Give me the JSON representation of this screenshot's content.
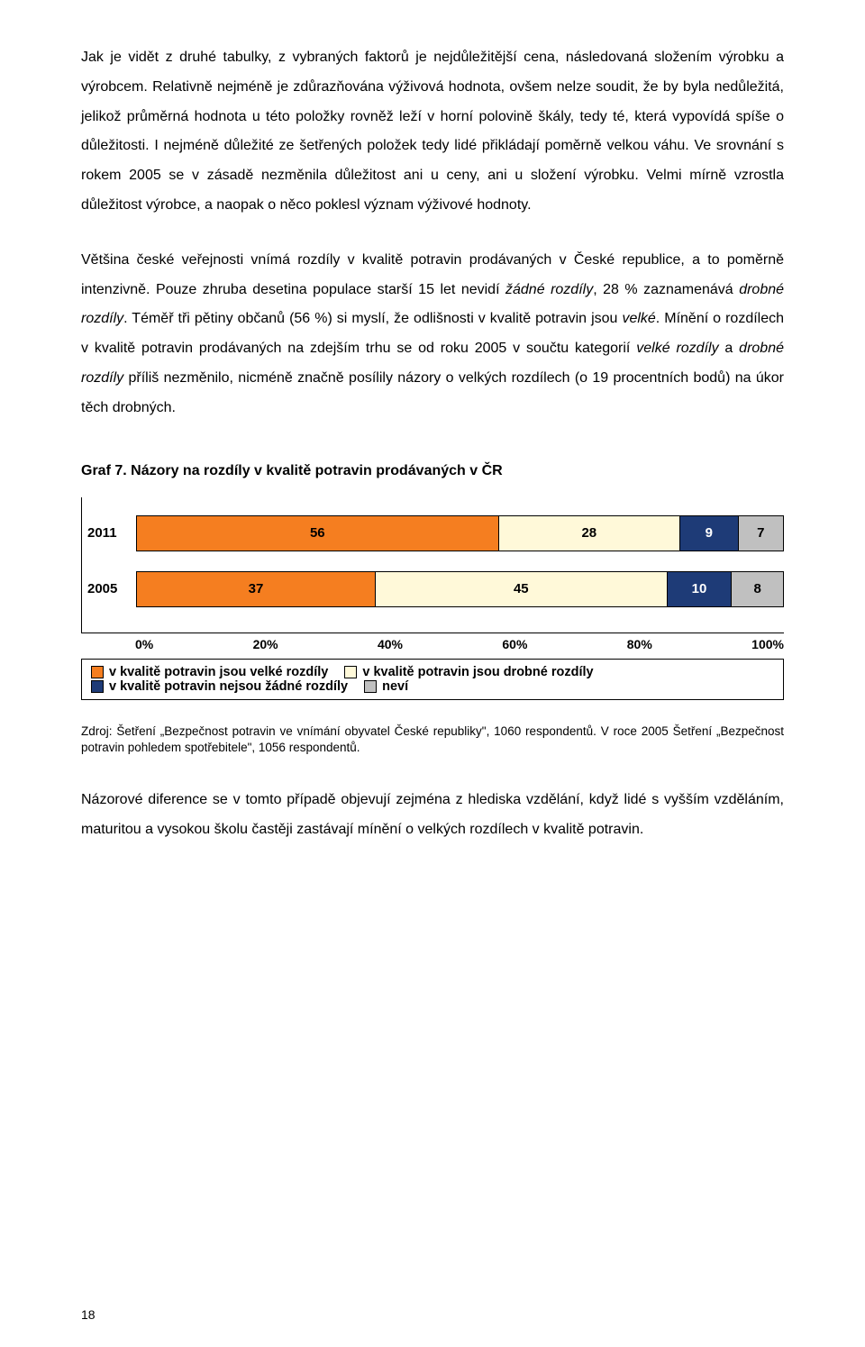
{
  "paragraphs": {
    "p1": "Jak je vidět z druhé tabulky, z vybraných faktorů je nejdůležitější cena, následovaná složením výrobku a výrobcem. Relativně nejméně je zdůrazňována výživová hodnota, ovšem nelze soudit, že by byla nedůležitá, jelikož průměrná hodnota u této položky rovněž leží v horní polovině škály, tedy té, která vypovídá spíše o důležitosti. I nejméně důležité ze šetřených položek tedy lidé přikládají poměrně velkou váhu. Ve srovnání s rokem 2005 se v zásadě nezměnila důležitost ani u ceny, ani u složení výrobku. Velmi mírně vzrostla důležitost výrobce, a naopak o něco poklesl význam výživové hodnoty.",
    "p2_html": "Většina české veřejnosti vnímá rozdíly v kvalitě potravin prodávaných v České republice, a to poměrně intenzivně. Pouze zhruba desetina populace starší 15 let nevidí <span class=\"ital\">žádné rozdíly</span>, 28 % zaznamenává <span class=\"ital\">drobné rozdíly</span>. Téměř tři pětiny občanů (56 %) si myslí, že odlišnosti v kvalitě potravin jsou <span class=\"ital\">velké</span>. Mínění o rozdílech v kvalitě potravin prodávaných na zdejším trhu se od roku 2005 v součtu kategorií <span class=\"ital\">velké rozdíly</span> a <span class=\"ital\">drobné rozdíly</span> příliš nezměnilo, nicméně značně posílily názory o velkých rozdílech (o 19 procentních bodů) na úkor těch drobných.",
    "p3": "Názorové diference se v tomto případě objevují zejména z hlediska vzdělání, když lidé s vyšším vzděláním, maturitou a vysokou školu častěji zastávají mínění o velkých rozdílech v kvalitě potravin."
  },
  "chart": {
    "title": "Graf 7. Názory na rozdíly v kvalitě potravin prodávaných v ČR",
    "x_ticks": [
      "0%",
      "20%",
      "40%",
      "60%",
      "80%",
      "100%"
    ],
    "colors": {
      "velke": "#f57e20",
      "drobne": "#fff9d9",
      "zadne": "#1e3b77",
      "nevi": "#c0c0c0",
      "text_dark": "#000000",
      "text_light": "#ffffff"
    },
    "rows": [
      {
        "year": "2011",
        "segments": [
          {
            "key": "velke",
            "value": 56,
            "label": "56"
          },
          {
            "key": "drobne",
            "value": 28,
            "label": "28"
          },
          {
            "key": "zadne",
            "value": 9,
            "label": "9"
          },
          {
            "key": "nevi",
            "value": 7,
            "label": "7"
          }
        ]
      },
      {
        "year": "2005",
        "segments": [
          {
            "key": "velke",
            "value": 37,
            "label": "37"
          },
          {
            "key": "drobne",
            "value": 45,
            "label": "45"
          },
          {
            "key": "zadne",
            "value": 10,
            "label": "10"
          },
          {
            "key": "nevi",
            "value": 8,
            "label": "8"
          }
        ]
      }
    ],
    "legend": [
      {
        "key": "velke",
        "label": "v kvalitě potravin jsou velké rozdíly"
      },
      {
        "key": "drobne",
        "label": "v kvalitě potravin jsou drobné rozdíly"
      },
      {
        "key": "zadne",
        "label": "v kvalitě potravin nejsou žádné rozdíly"
      },
      {
        "key": "nevi",
        "label": "neví"
      }
    ]
  },
  "source": "Zdroj: Šetření „Bezpečnost potravin ve vnímání obyvatel České republiky\", 1060 respondentů. V roce 2005 Šetření „Bezpečnost potravin pohledem spotřebitele\", 1056 respondentů.",
  "page_number": "18"
}
